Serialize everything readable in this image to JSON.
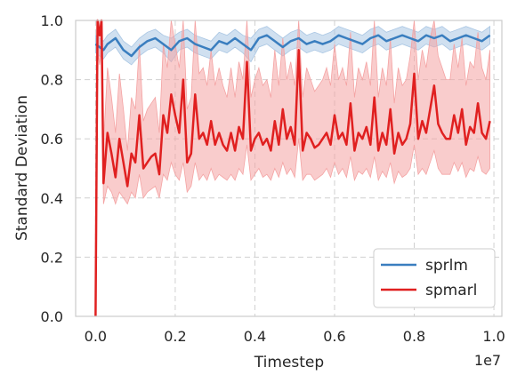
{
  "chart_data": {
    "type": "line",
    "xlabel": "Timestep",
    "ylabel": "Standard Deviation",
    "x_offset_label": "1e7",
    "xlim": [
      -0.05,
      1.02
    ],
    "ylim": [
      0.0,
      1.0
    ],
    "x_ticks": [
      0.0,
      0.2,
      0.4,
      0.6,
      0.8,
      1.0
    ],
    "x_tick_labels": [
      "0.0",
      "0.2",
      "0.4",
      "0.6",
      "0.8",
      "1.0"
    ],
    "y_ticks": [
      0.0,
      0.2,
      0.4,
      0.6,
      0.8,
      1.0
    ],
    "y_tick_labels": [
      "0.0",
      "0.2",
      "0.4",
      "0.6",
      "0.8",
      "1.0"
    ],
    "grid": true,
    "legend_position": "bottom-right",
    "series": [
      {
        "name": "sprlm",
        "color": "#3a7ebf",
        "band_color": "#a9c6e3",
        "x": [
          0.0,
          0.01,
          0.02,
          0.03,
          0.05,
          0.07,
          0.09,
          0.11,
          0.13,
          0.15,
          0.17,
          0.19,
          0.21,
          0.23,
          0.25,
          0.27,
          0.29,
          0.31,
          0.33,
          0.35,
          0.37,
          0.39,
          0.41,
          0.43,
          0.45,
          0.47,
          0.49,
          0.51,
          0.53,
          0.55,
          0.57,
          0.59,
          0.61,
          0.63,
          0.65,
          0.67,
          0.69,
          0.71,
          0.73,
          0.75,
          0.77,
          0.79,
          0.81,
          0.83,
          0.85,
          0.87,
          0.89,
          0.91,
          0.93,
          0.95,
          0.97,
          0.99
        ],
        "y": [
          0.92,
          0.91,
          0.9,
          0.92,
          0.94,
          0.9,
          0.88,
          0.91,
          0.93,
          0.94,
          0.92,
          0.9,
          0.93,
          0.94,
          0.92,
          0.91,
          0.9,
          0.93,
          0.92,
          0.94,
          0.92,
          0.9,
          0.94,
          0.95,
          0.93,
          0.91,
          0.93,
          0.94,
          0.92,
          0.93,
          0.92,
          0.93,
          0.95,
          0.94,
          0.93,
          0.92,
          0.94,
          0.95,
          0.93,
          0.94,
          0.95,
          0.94,
          0.93,
          0.95,
          0.94,
          0.95,
          0.93,
          0.94,
          0.95,
          0.94,
          0.93,
          0.95
        ],
        "lower": [
          0.89,
          0.88,
          0.87,
          0.89,
          0.91,
          0.87,
          0.85,
          0.88,
          0.9,
          0.91,
          0.89,
          0.86,
          0.9,
          0.91,
          0.89,
          0.88,
          0.87,
          0.9,
          0.89,
          0.91,
          0.89,
          0.86,
          0.91,
          0.92,
          0.9,
          0.88,
          0.9,
          0.91,
          0.89,
          0.9,
          0.89,
          0.9,
          0.92,
          0.91,
          0.9,
          0.89,
          0.91,
          0.92,
          0.9,
          0.91,
          0.92,
          0.91,
          0.9,
          0.92,
          0.91,
          0.92,
          0.9,
          0.91,
          0.92,
          0.91,
          0.9,
          0.92
        ],
        "upper": [
          0.95,
          0.94,
          0.93,
          0.95,
          0.97,
          0.93,
          0.91,
          0.94,
          0.96,
          0.97,
          0.95,
          0.94,
          0.96,
          0.97,
          0.95,
          0.94,
          0.93,
          0.96,
          0.95,
          0.97,
          0.95,
          0.94,
          0.97,
          0.98,
          0.96,
          0.94,
          0.96,
          0.97,
          0.95,
          0.96,
          0.95,
          0.96,
          0.98,
          0.97,
          0.96,
          0.95,
          0.97,
          0.98,
          0.96,
          0.97,
          0.98,
          0.97,
          0.96,
          0.98,
          0.97,
          0.98,
          0.96,
          0.97,
          0.98,
          0.97,
          0.96,
          0.98
        ]
      },
      {
        "name": "spmarl",
        "color": "#e02020",
        "band_color": "#f4a3a3",
        "x": [
          0.0,
          0.005,
          0.01,
          0.015,
          0.02,
          0.03,
          0.04,
          0.05,
          0.06,
          0.07,
          0.08,
          0.09,
          0.1,
          0.11,
          0.12,
          0.13,
          0.14,
          0.15,
          0.16,
          0.17,
          0.18,
          0.19,
          0.2,
          0.21,
          0.22,
          0.23,
          0.24,
          0.25,
          0.26,
          0.27,
          0.28,
          0.29,
          0.3,
          0.31,
          0.32,
          0.33,
          0.34,
          0.35,
          0.36,
          0.37,
          0.38,
          0.39,
          0.4,
          0.41,
          0.42,
          0.43,
          0.44,
          0.45,
          0.46,
          0.47,
          0.48,
          0.49,
          0.5,
          0.51,
          0.52,
          0.53,
          0.54,
          0.55,
          0.56,
          0.57,
          0.58,
          0.59,
          0.6,
          0.61,
          0.62,
          0.63,
          0.64,
          0.65,
          0.66,
          0.67,
          0.68,
          0.69,
          0.7,
          0.71,
          0.72,
          0.73,
          0.74,
          0.75,
          0.76,
          0.77,
          0.78,
          0.79,
          0.8,
          0.81,
          0.82,
          0.83,
          0.84,
          0.85,
          0.86,
          0.87,
          0.88,
          0.89,
          0.9,
          0.91,
          0.92,
          0.93,
          0.94,
          0.95,
          0.96,
          0.97,
          0.98,
          0.99
        ],
        "y": [
          0.0,
          1.0,
          0.95,
          1.0,
          0.45,
          0.62,
          0.55,
          0.47,
          0.6,
          0.52,
          0.44,
          0.55,
          0.52,
          0.68,
          0.5,
          0.52,
          0.54,
          0.55,
          0.48,
          0.68,
          0.62,
          0.75,
          0.68,
          0.62,
          0.8,
          0.52,
          0.55,
          0.75,
          0.6,
          0.62,
          0.58,
          0.66,
          0.58,
          0.62,
          0.58,
          0.56,
          0.62,
          0.56,
          0.64,
          0.6,
          0.86,
          0.56,
          0.6,
          0.62,
          0.58,
          0.6,
          0.56,
          0.66,
          0.58,
          0.7,
          0.6,
          0.64,
          0.58,
          0.9,
          0.56,
          0.62,
          0.6,
          0.57,
          0.58,
          0.6,
          0.62,
          0.58,
          0.68,
          0.6,
          0.62,
          0.58,
          0.72,
          0.56,
          0.62,
          0.6,
          0.64,
          0.58,
          0.74,
          0.56,
          0.62,
          0.58,
          0.7,
          0.55,
          0.62,
          0.58,
          0.6,
          0.65,
          0.82,
          0.6,
          0.66,
          0.62,
          0.7,
          0.78,
          0.65,
          0.62,
          0.6,
          0.6,
          0.68,
          0.62,
          0.7,
          0.58,
          0.64,
          0.62,
          0.72,
          0.62,
          0.6,
          0.66
        ],
        "lower": [
          0.0,
          0.9,
          0.85,
          0.9,
          0.38,
          0.44,
          0.42,
          0.38,
          0.42,
          0.4,
          0.38,
          0.42,
          0.4,
          0.48,
          0.4,
          0.42,
          0.43,
          0.44,
          0.4,
          0.48,
          0.46,
          0.52,
          0.48,
          0.46,
          0.52,
          0.42,
          0.44,
          0.52,
          0.46,
          0.48,
          0.46,
          0.5,
          0.46,
          0.48,
          0.47,
          0.46,
          0.48,
          0.46,
          0.5,
          0.48,
          0.58,
          0.46,
          0.48,
          0.5,
          0.47,
          0.48,
          0.46,
          0.5,
          0.47,
          0.52,
          0.48,
          0.5,
          0.47,
          0.6,
          0.46,
          0.48,
          0.48,
          0.46,
          0.47,
          0.48,
          0.5,
          0.47,
          0.52,
          0.48,
          0.5,
          0.47,
          0.54,
          0.46,
          0.49,
          0.48,
          0.5,
          0.47,
          0.54,
          0.46,
          0.49,
          0.47,
          0.52,
          0.45,
          0.49,
          0.47,
          0.48,
          0.5,
          0.58,
          0.48,
          0.5,
          0.48,
          0.52,
          0.56,
          0.5,
          0.48,
          0.48,
          0.48,
          0.52,
          0.49,
          0.52,
          0.47,
          0.5,
          0.49,
          0.54,
          0.49,
          0.48,
          0.5
        ],
        "upper": [
          0.0,
          1.0,
          1.0,
          1.0,
          0.58,
          0.84,
          0.74,
          0.62,
          0.82,
          0.7,
          0.56,
          0.74,
          0.7,
          0.92,
          0.66,
          0.7,
          0.72,
          0.74,
          0.62,
          0.92,
          0.84,
          1.0,
          0.92,
          0.84,
          1.0,
          0.7,
          0.74,
          1.0,
          0.82,
          0.84,
          0.78,
          0.9,
          0.78,
          0.84,
          0.78,
          0.74,
          0.84,
          0.74,
          0.86,
          0.8,
          1.0,
          0.74,
          0.8,
          0.84,
          0.78,
          0.8,
          0.74,
          0.9,
          0.78,
          0.94,
          0.8,
          0.86,
          0.78,
          1.0,
          0.74,
          0.84,
          0.8,
          0.76,
          0.78,
          0.8,
          0.84,
          0.78,
          0.92,
          0.8,
          0.84,
          0.78,
          0.96,
          0.74,
          0.84,
          0.8,
          0.86,
          0.78,
          1.0,
          0.74,
          0.84,
          0.78,
          0.94,
          0.72,
          0.84,
          0.78,
          0.8,
          0.88,
          1.0,
          0.8,
          0.9,
          0.84,
          0.94,
          1.0,
          0.88,
          0.84,
          0.8,
          0.8,
          0.92,
          0.84,
          0.94,
          0.78,
          0.86,
          0.84,
          0.96,
          0.84,
          0.8,
          0.9
        ]
      }
    ]
  }
}
